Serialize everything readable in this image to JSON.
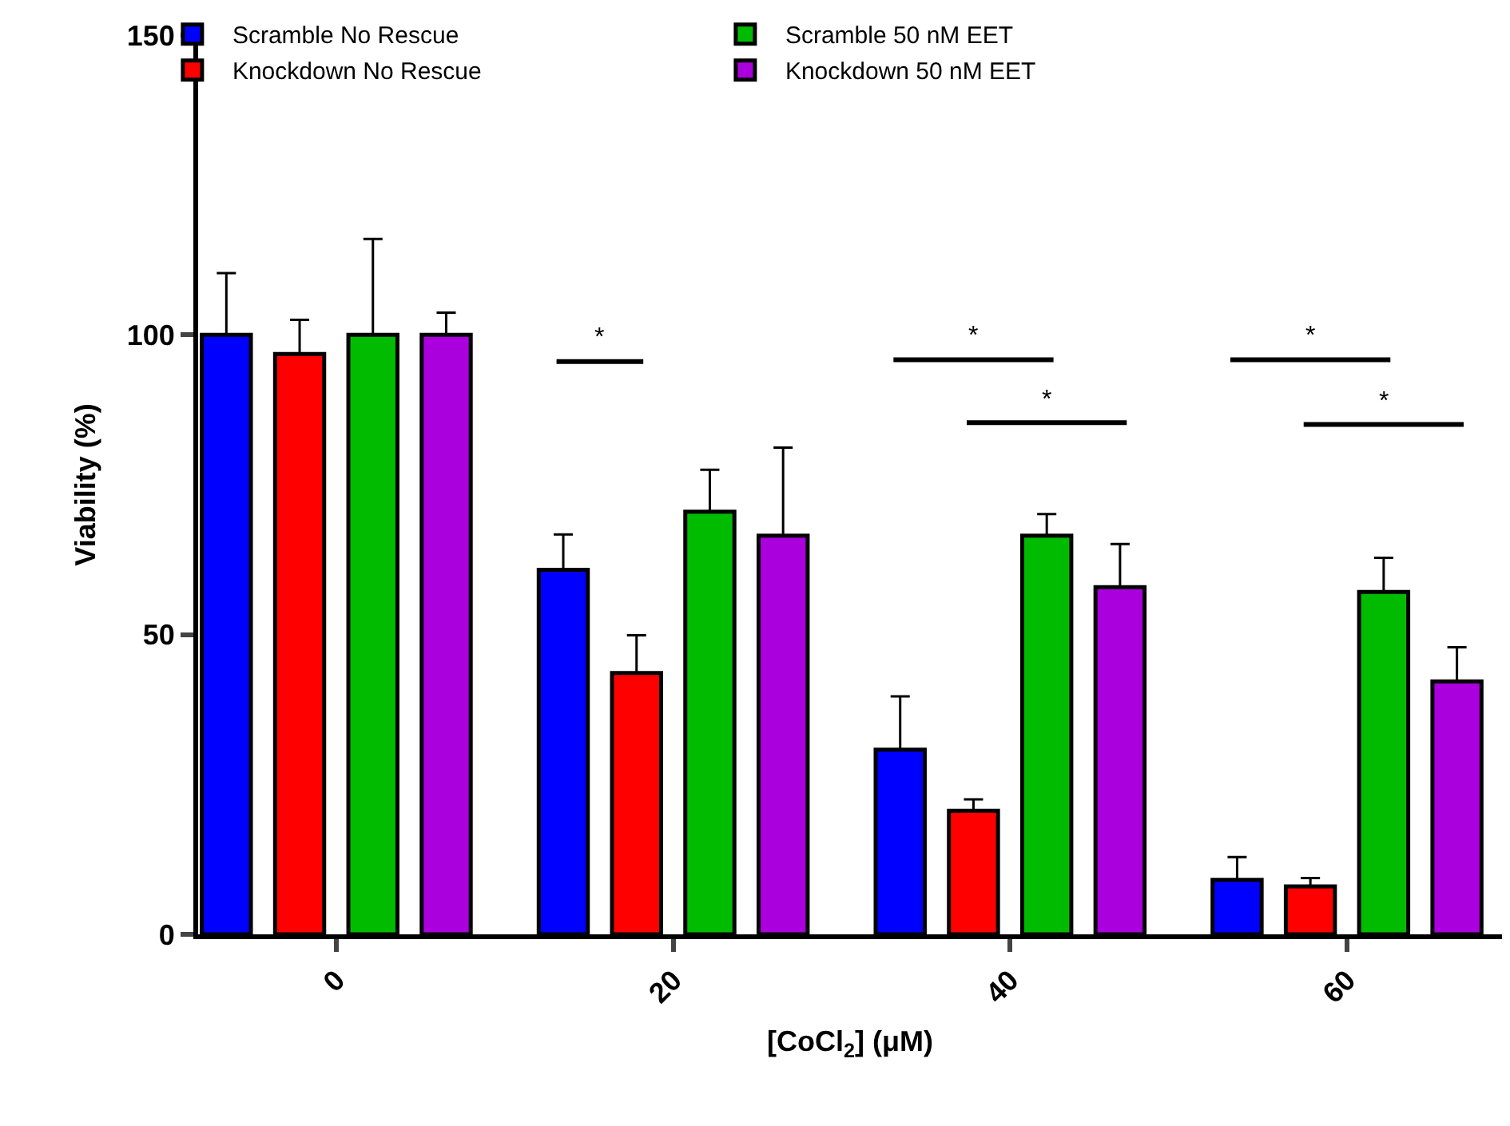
{
  "chart_data": {
    "type": "bar",
    "xlabel": "[CoCl$_{2}$] (μM)",
    "ylabel": "Viability (%)",
    "categories": [
      "0",
      "20",
      "40",
      "60"
    ],
    "series": [
      {
        "name": "Scramble No Rescue",
        "color": "#0000ff",
        "values": [
          100,
          60.8,
          30.8,
          9.1
        ],
        "errors": [
          [
            100,
            110.3
          ],
          [
            60.8,
            66.7
          ],
          [
            30.8,
            39.7
          ],
          [
            9.1,
            12.9
          ]
        ]
      },
      {
        "name": "Knockdown No Rescue",
        "color": "#ff0000",
        "values": [
          96.8,
          43.6,
          20.6,
          8.0
        ],
        "errors": [
          [
            96.8,
            102.5
          ],
          [
            43.6,
            49.9
          ],
          [
            20.6,
            22.5
          ],
          [
            8.0,
            9.4
          ]
        ]
      },
      {
        "name": "Scramble 50 nM EET",
        "color": "#00bb00",
        "values": [
          100,
          70.5,
          66.5,
          57.1
        ],
        "errors": [
          [
            100,
            116
          ],
          [
            70.5,
            77.5
          ],
          [
            66.5,
            70.1
          ],
          [
            57.1,
            62.8
          ]
        ]
      },
      {
        "name": "Knockdown 50 nM EET",
        "color": "#aa00dd",
        "values": [
          100,
          66.5,
          57.9,
          42.2
        ],
        "errors": [
          [
            100,
            103.7
          ],
          [
            66.5,
            81.2
          ],
          [
            57.9,
            65.1
          ],
          [
            42.2,
            47.9
          ]
        ]
      }
    ],
    "annotations": [
      "*",
      "*",
      "*",
      "*",
      "*"
    ],
    "ylim": [
      0,
      150
    ],
    "yticks": [
      0,
      50,
      100,
      150
    ],
    "legend": "top left"
  }
}
